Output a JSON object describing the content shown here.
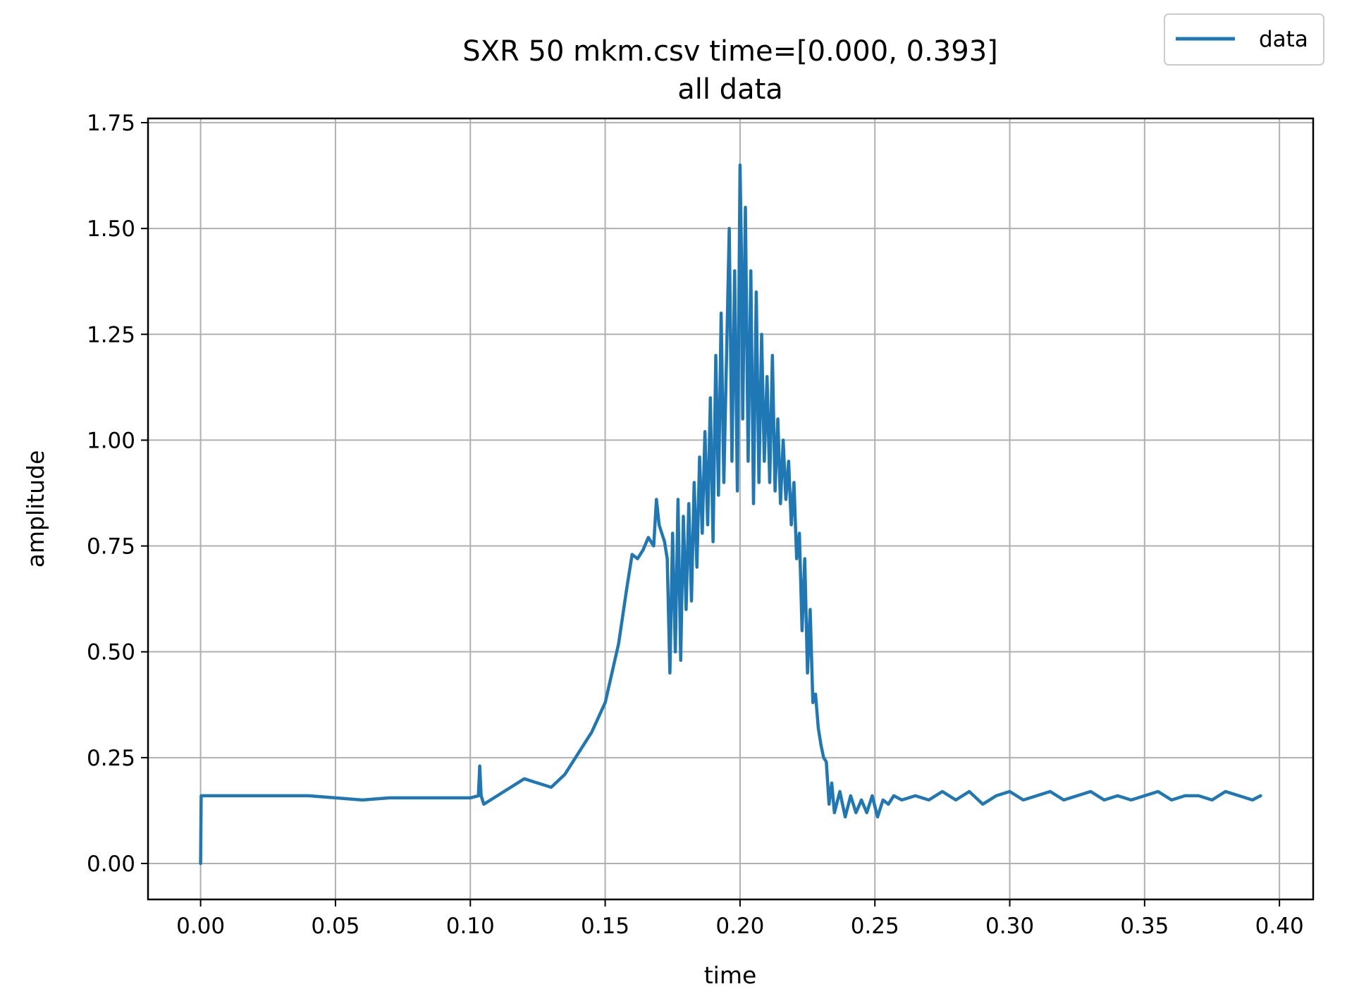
{
  "chart_data": {
    "type": "line",
    "title": "SXR 50 mkm.csv time=[0.000, 0.393]",
    "subtitle": "all data",
    "xlabel": "time",
    "ylabel": "amplitude",
    "xlim": [
      -0.0195,
      0.4125
    ],
    "ylim": [
      -0.085,
      1.76
    ],
    "xticks": [
      0.0,
      0.05,
      0.1,
      0.15,
      0.2,
      0.25,
      0.3,
      0.35,
      0.4
    ],
    "xtick_labels": [
      "0.00",
      "0.05",
      "0.10",
      "0.15",
      "0.20",
      "0.25",
      "0.30",
      "0.35",
      "0.40"
    ],
    "yticks": [
      0.0,
      0.25,
      0.5,
      0.75,
      1.0,
      1.25,
      1.5,
      1.75
    ],
    "ytick_labels": [
      "0.00",
      "0.25",
      "0.50",
      "0.75",
      "1.00",
      "1.25",
      "1.50",
      "1.75"
    ],
    "grid": true,
    "legend_position": "top-right",
    "series": [
      {
        "name": "data",
        "color": "#1f77b4",
        "x": [
          0.0,
          0.0002,
          0.0005,
          0.01,
          0.02,
          0.03,
          0.04,
          0.05,
          0.06,
          0.07,
          0.08,
          0.09,
          0.1,
          0.103,
          0.1035,
          0.104,
          0.105,
          0.11,
          0.115,
          0.12,
          0.125,
          0.13,
          0.135,
          0.14,
          0.145,
          0.15,
          0.155,
          0.158,
          0.16,
          0.162,
          0.164,
          0.166,
          0.168,
          0.169,
          0.17,
          0.171,
          0.172,
          0.173,
          0.174,
          0.175,
          0.176,
          0.177,
          0.178,
          0.179,
          0.18,
          0.181,
          0.182,
          0.183,
          0.184,
          0.185,
          0.186,
          0.187,
          0.188,
          0.189,
          0.19,
          0.191,
          0.192,
          0.193,
          0.194,
          0.195,
          0.196,
          0.197,
          0.198,
          0.199,
          0.2,
          0.2005,
          0.201,
          0.202,
          0.203,
          0.204,
          0.205,
          0.206,
          0.207,
          0.208,
          0.209,
          0.21,
          0.211,
          0.212,
          0.213,
          0.214,
          0.215,
          0.216,
          0.217,
          0.218,
          0.219,
          0.22,
          0.221,
          0.222,
          0.223,
          0.224,
          0.225,
          0.226,
          0.227,
          0.228,
          0.229,
          0.23,
          0.231,
          0.232,
          0.233,
          0.234,
          0.235,
          0.237,
          0.239,
          0.241,
          0.243,
          0.245,
          0.247,
          0.249,
          0.251,
          0.253,
          0.255,
          0.257,
          0.26,
          0.265,
          0.27,
          0.275,
          0.28,
          0.285,
          0.29,
          0.295,
          0.3,
          0.305,
          0.31,
          0.315,
          0.32,
          0.325,
          0.33,
          0.335,
          0.34,
          0.345,
          0.35,
          0.355,
          0.36,
          0.365,
          0.37,
          0.375,
          0.38,
          0.385,
          0.39,
          0.393
        ],
        "y": [
          0.0,
          0.16,
          0.16,
          0.16,
          0.16,
          0.16,
          0.16,
          0.155,
          0.15,
          0.155,
          0.155,
          0.155,
          0.155,
          0.16,
          0.23,
          0.16,
          0.14,
          0.16,
          0.18,
          0.2,
          0.19,
          0.18,
          0.21,
          0.26,
          0.31,
          0.38,
          0.52,
          0.65,
          0.73,
          0.72,
          0.74,
          0.77,
          0.75,
          0.86,
          0.8,
          0.78,
          0.76,
          0.72,
          0.45,
          0.78,
          0.5,
          0.86,
          0.48,
          0.82,
          0.6,
          0.85,
          0.62,
          0.9,
          0.7,
          0.96,
          0.78,
          1.02,
          0.8,
          1.1,
          0.76,
          1.2,
          0.87,
          1.3,
          0.9,
          1.2,
          1.5,
          0.95,
          1.4,
          0.88,
          1.65,
          1.45,
          1.05,
          1.55,
          0.95,
          1.4,
          0.85,
          1.35,
          0.9,
          1.25,
          0.95,
          1.15,
          0.9,
          1.2,
          0.88,
          1.05,
          0.85,
          1.0,
          0.86,
          0.95,
          0.8,
          0.9,
          0.72,
          0.78,
          0.55,
          0.72,
          0.45,
          0.6,
          0.38,
          0.4,
          0.32,
          0.28,
          0.25,
          0.24,
          0.14,
          0.19,
          0.12,
          0.17,
          0.11,
          0.16,
          0.12,
          0.15,
          0.12,
          0.16,
          0.11,
          0.15,
          0.14,
          0.16,
          0.15,
          0.16,
          0.15,
          0.17,
          0.15,
          0.17,
          0.14,
          0.16,
          0.17,
          0.15,
          0.16,
          0.17,
          0.15,
          0.16,
          0.17,
          0.15,
          0.16,
          0.15,
          0.16,
          0.17,
          0.15,
          0.16,
          0.16,
          0.15,
          0.17,
          0.16,
          0.15,
          0.16
        ]
      }
    ]
  }
}
